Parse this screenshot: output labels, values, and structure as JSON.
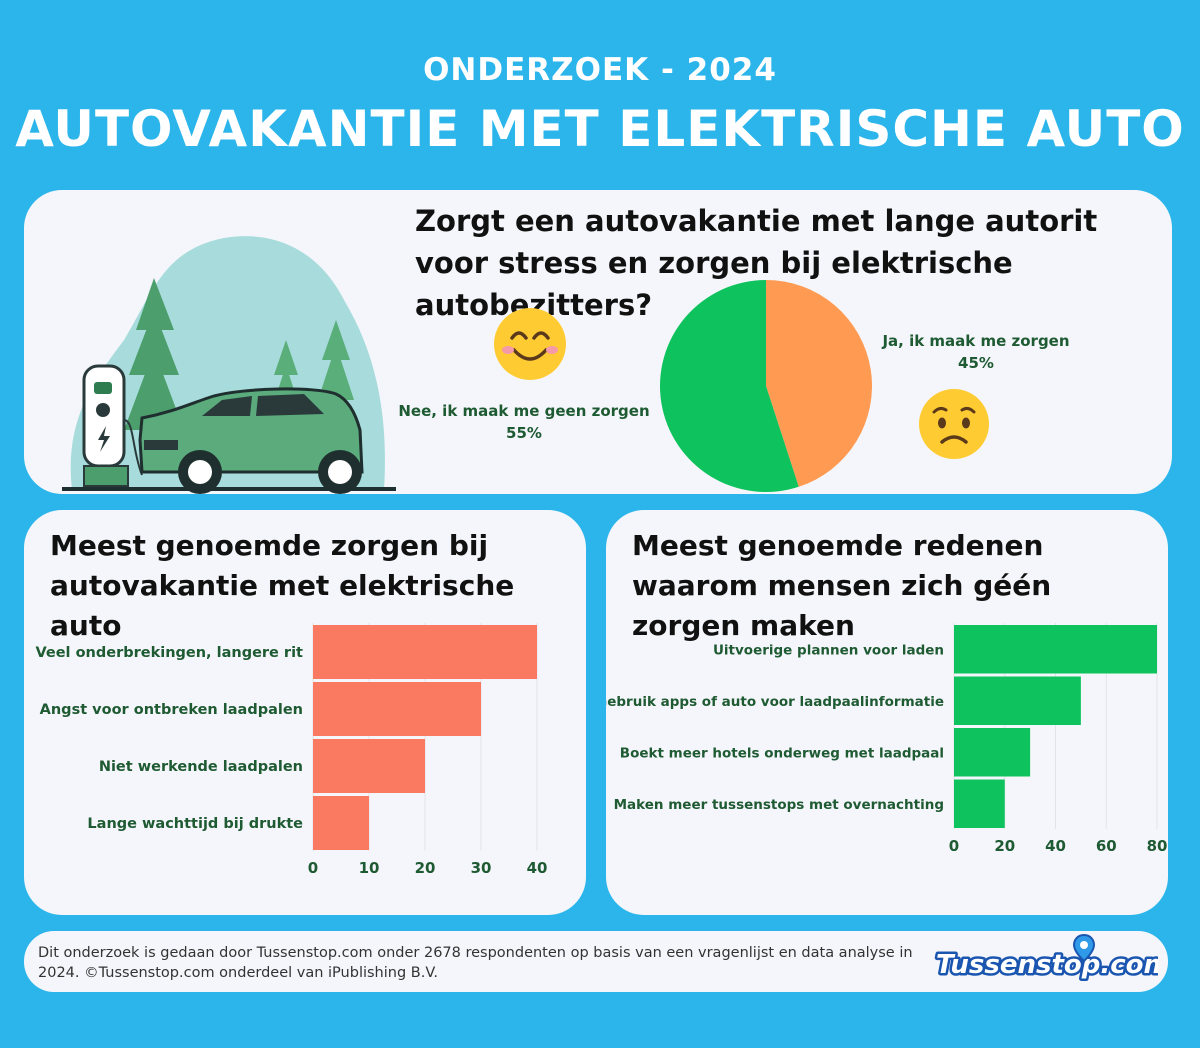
{
  "header": {
    "subtitle": "ONDERZOEK - 2024",
    "title": "AUTOVAKANTIE MET ELEKTRISCHE AUTO"
  },
  "pie_section": {
    "question": "Zorgt een autovakantie met lange autorit voor stress en zorgen bij elektrische autobezitters?",
    "yes_label": "Ja, ik maak me zorgen",
    "yes_pct": "45%",
    "no_label": "Nee, ik maak me geen zorgen",
    "no_pct": "55%"
  },
  "left_chart": {
    "title": "Meest genoemde zorgen bij autovakantie met elektrische auto"
  },
  "right_chart": {
    "title": "Meest genoemde redenen waarom mensen zich géén zorgen maken"
  },
  "footer": {
    "text": "Dit onderzoek is gedaan door Tussenstop.com onder 2678 respondenten op basis van een vragenlijst en data analyse in 2024. ©Tussenstop.com onderdeel van iPublishing B.V.",
    "logo_text": "Tussenstop.com"
  },
  "colors": {
    "background": "#2bb5eb",
    "pie_yes": "#ff9a52",
    "pie_no": "#0ec35d",
    "bar_left": "#fa7961",
    "bar_right": "#0ec35d",
    "label_text": "#1e5a32"
  },
  "chart_data": [
    {
      "type": "pie",
      "title": "Zorgt een autovakantie met lange autorit voor stress en zorgen bij elektrische autobezitters?",
      "categories": [
        "Ja, ik maak me zorgen",
        "Nee, ik maak me geen zorgen"
      ],
      "values": [
        45,
        55
      ]
    },
    {
      "type": "bar",
      "orientation": "horizontal",
      "title": "Meest genoemde zorgen bij autovakantie met elektrische auto",
      "categories": [
        "Veel onderbrekingen, langere rit",
        "Angst voor ontbreken laadpalen",
        "Niet werkende laadpalen",
        "Lange wachttijd bij drukte"
      ],
      "values": [
        40,
        30,
        20,
        10
      ],
      "xlim": [
        0,
        40
      ],
      "ticks": [
        "0",
        "10",
        "20",
        "30",
        "40"
      ],
      "grid": true
    },
    {
      "type": "bar",
      "orientation": "horizontal",
      "title": "Meest genoemde redenen waarom mensen zich géén zorgen maken",
      "categories": [
        "Uitvoerige plannen voor laden",
        "Gebruik apps of auto voor laadpaalinformatie",
        "Boekt meer hotels onderweg met laadpaal",
        "Maken meer tussenstops met overnachting"
      ],
      "values": [
        80,
        50,
        30,
        20
      ],
      "xlim": [
        0,
        80
      ],
      "ticks": [
        "0",
        "20",
        "40",
        "60",
        "80"
      ],
      "grid": true
    }
  ]
}
